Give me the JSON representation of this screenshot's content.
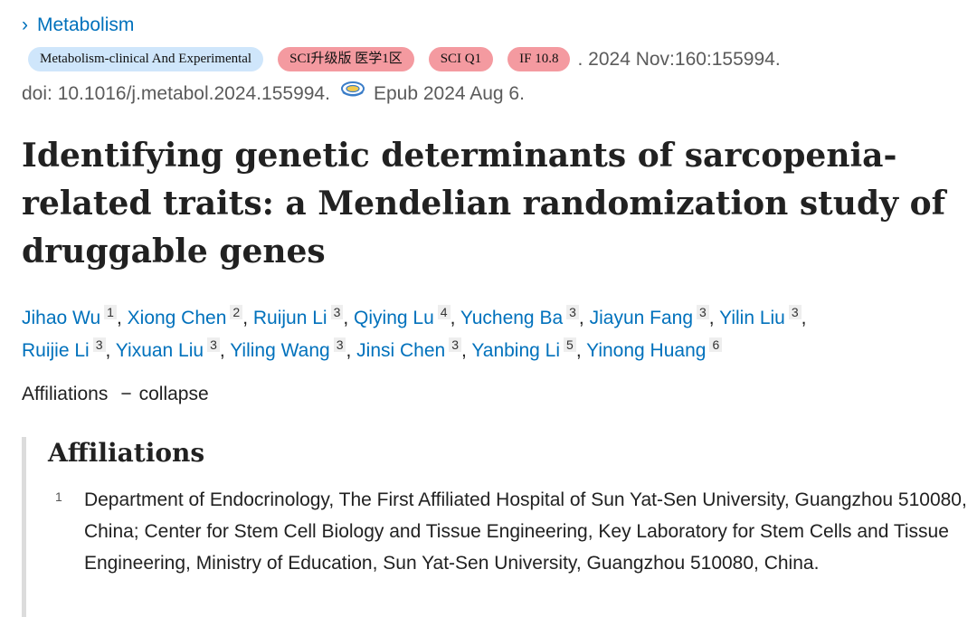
{
  "breadcrumb": {
    "chevron": "›",
    "journal_link": "Metabolism"
  },
  "citation": {
    "journal_badge": "Metabolism-clinical And Experimental",
    "badges": [
      "SCI升级版 医学1区",
      "SCI Q1",
      "IF 10.8"
    ],
    "details": ". 2024 Nov:160:155994.",
    "doi": "doi: 10.1016/j.metabol.2024.155994.",
    "epub": "Epub 2024 Aug 6."
  },
  "article": {
    "title": "Identifying genetic determinants of sarcopenia-related traits: a Mendelian randomization study of druggable genes"
  },
  "authors": [
    {
      "name": "Jihao Wu",
      "aff": "1"
    },
    {
      "name": "Xiong Chen",
      "aff": "2"
    },
    {
      "name": "Ruijun Li",
      "aff": "3"
    },
    {
      "name": "Qiying Lu",
      "aff": "4"
    },
    {
      "name": "Yucheng Ba",
      "aff": "3"
    },
    {
      "name": "Jiayun Fang",
      "aff": "3"
    },
    {
      "name": "Yilin Liu",
      "aff": "3"
    },
    {
      "name": "Ruijie Li",
      "aff": "3"
    },
    {
      "name": "Yixuan Liu",
      "aff": "3"
    },
    {
      "name": "Yiling Wang",
      "aff": "3"
    },
    {
      "name": "Jinsi Chen",
      "aff": "3"
    },
    {
      "name": "Yanbing Li",
      "aff": "5"
    },
    {
      "name": "Yinong Huang",
      "aff": "6"
    }
  ],
  "affiliations_toggle": {
    "label": "Affiliations",
    "dash": "−",
    "action": "collapse"
  },
  "affiliations": {
    "heading": "Affiliations",
    "items": [
      {
        "num": "1",
        "text": "Department of Endocrinology, The First Affiliated Hospital of Sun Yat-Sen University, Guangzhou 510080, China; Center for Stem Cell Biology and Tissue Engineering, Key Laboratory for Stem Cells and Tissue Engineering, Ministry of Education, Sun Yat-Sen University, Guangzhou 510080, China."
      }
    ]
  },
  "colors": {
    "link": "#0071bc",
    "journal_badge_bg": "#cfe6fb",
    "rank_badge_bg": "#f49aa0"
  },
  "icons": {
    "doi_icon": "full-text-link-icon"
  }
}
